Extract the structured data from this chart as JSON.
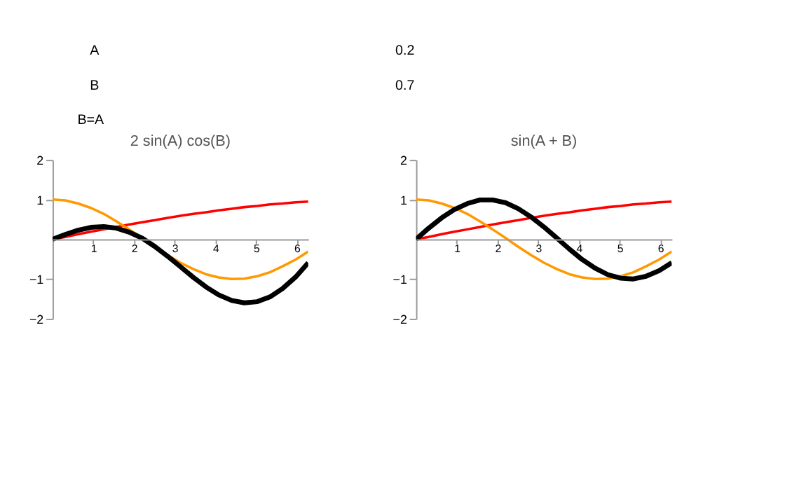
{
  "chart_data": [
    {
      "type": "other",
      "annotations": [
        "A",
        "0.2",
        "B",
        "0.7",
        "B=A"
      ]
    },
    {
      "type": "line",
      "title": "2 sin(A) cos(B)",
      "x": [
        0,
        0.31,
        0.63,
        0.94,
        1.26,
        1.57,
        1.88,
        2.2,
        2.51,
        2.83,
        3.14,
        3.46,
        3.77,
        4.08,
        4.4,
        4.71,
        5.03,
        5.34,
        5.65,
        5.97,
        6.28
      ],
      "xlim": [
        0,
        6.28
      ],
      "ylim": [
        -2,
        2
      ],
      "xticks": [
        1,
        2,
        3,
        4,
        5,
        6
      ],
      "yticks": [
        -2,
        -1,
        1,
        2
      ],
      "grid": false,
      "series": [
        {
          "color": "#ff0000",
          "values": [
            0,
            0.06,
            0.13,
            0.19,
            0.25,
            0.31,
            0.37,
            0.43,
            0.48,
            0.54,
            0.59,
            0.64,
            0.68,
            0.73,
            0.77,
            0.81,
            0.84,
            0.88,
            0.9,
            0.93,
            0.95
          ]
        },
        {
          "color": "#ff9900",
          "values": [
            1,
            0.98,
            0.9,
            0.79,
            0.64,
            0.45,
            0.25,
            0.03,
            -0.19,
            -0.4,
            -0.59,
            -0.75,
            -0.88,
            -0.96,
            -1,
            -0.99,
            -0.93,
            -0.83,
            -0.68,
            -0.51,
            -0.31
          ]
        },
        {
          "color": "#000000",
          "values": [
            0,
            0.12,
            0.23,
            0.3,
            0.32,
            0.28,
            0.18,
            0.03,
            -0.18,
            -0.43,
            -0.69,
            -0.96,
            -1.2,
            -1.4,
            -1.54,
            -1.6,
            -1.57,
            -1.45,
            -1.24,
            -0.95,
            -0.59
          ]
        }
      ]
    },
    {
      "type": "line",
      "title": "sin(A + B)",
      "x": [
        0,
        0.31,
        0.63,
        0.94,
        1.26,
        1.57,
        1.88,
        2.2,
        2.51,
        2.83,
        3.14,
        3.46,
        3.77,
        4.08,
        4.4,
        4.71,
        5.03,
        5.34,
        5.65,
        5.97,
        6.28
      ],
      "xlim": [
        0,
        6.28
      ],
      "ylim": [
        -2,
        2
      ],
      "xticks": [
        1,
        2,
        3,
        4,
        5,
        6
      ],
      "yticks": [
        -2,
        -1,
        1,
        2
      ],
      "grid": false,
      "series": [
        {
          "color": "#ff0000",
          "values": [
            0,
            0.06,
            0.13,
            0.19,
            0.25,
            0.31,
            0.37,
            0.43,
            0.48,
            0.54,
            0.59,
            0.64,
            0.68,
            0.73,
            0.77,
            0.81,
            0.84,
            0.88,
            0.9,
            0.93,
            0.95
          ]
        },
        {
          "color": "#ff9900",
          "values": [
            1,
            0.98,
            0.9,
            0.79,
            0.64,
            0.45,
            0.25,
            0.03,
            -0.19,
            -0.4,
            -0.59,
            -0.75,
            -0.88,
            -0.96,
            -1,
            -0.99,
            -0.93,
            -0.83,
            -0.68,
            -0.51,
            -0.31
          ]
        },
        {
          "color": "#000000",
          "values": [
            0,
            0.28,
            0.54,
            0.75,
            0.9,
            0.99,
            0.99,
            0.92,
            0.77,
            0.56,
            0.31,
            0.03,
            -0.25,
            -0.51,
            -0.73,
            -0.89,
            -0.98,
            -1,
            -0.93,
            -0.79,
            -0.59
          ]
        }
      ]
    }
  ]
}
